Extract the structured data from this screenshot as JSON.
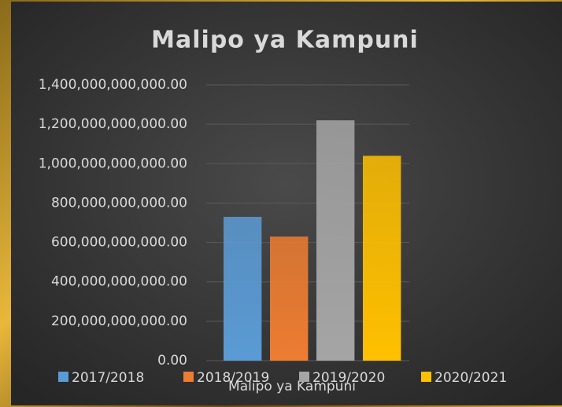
{
  "chart_data": {
    "type": "bar",
    "title": "Malipo ya Kampuni",
    "categories": [
      "Malipo ya Kampuni"
    ],
    "series": [
      {
        "name": "2017/2018",
        "color": "#5b9bd5",
        "values": [
          730000000000
        ]
      },
      {
        "name": "2018/2019",
        "color": "#ed7d31",
        "values": [
          630000000000
        ]
      },
      {
        "name": "2019/2020",
        "color": "#a5a5a5",
        "values": [
          1220000000000
        ]
      },
      {
        "name": "2020/2021",
        "color": "#ffc000",
        "values": [
          1040000000000
        ]
      }
    ],
    "ylim": [
      0,
      1400000000000
    ],
    "yticks": [
      {
        "value": 0,
        "label": "0.00"
      },
      {
        "value": 200000000000,
        "label": "200,000,000,000.00"
      },
      {
        "value": 400000000000,
        "label": "400,000,000,000.00"
      },
      {
        "value": 600000000000,
        "label": "600,000,000,000.00"
      },
      {
        "value": 800000000000,
        "label": "800,000,000,000.00"
      },
      {
        "value": 1000000000000,
        "label": "1,000,000,000,000.00"
      },
      {
        "value": 1200000000000,
        "label": "1,200,000,000,000.00"
      },
      {
        "value": 1400000000000,
        "label": "1,400,000,000,000.00"
      }
    ],
    "grid": true,
    "legend": "bottom"
  }
}
